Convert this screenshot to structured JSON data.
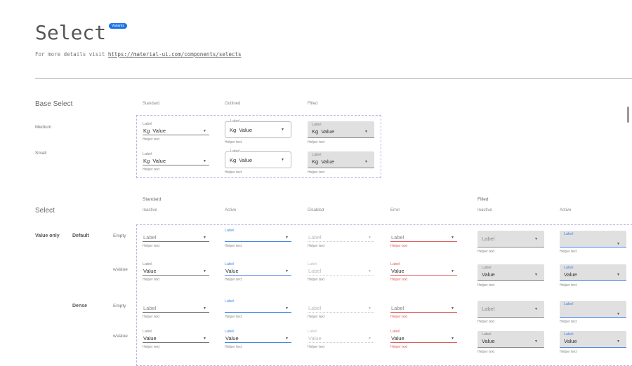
{
  "header": {
    "title": "Select",
    "badge": "Variants",
    "subtitle_prefix": "For more details visit ",
    "link": "https://material-ui.com/components/selects"
  },
  "base": {
    "title": "Base Select",
    "columns": [
      "Standard",
      "Outlined",
      "Filled"
    ],
    "rows": [
      "Medium",
      "Small"
    ],
    "field": {
      "label": "Label",
      "adornment": "Kg",
      "value": "Value",
      "helper": "Helper text"
    }
  },
  "select": {
    "title": "Select",
    "group_standard": "Standard",
    "group_filled": "Filled",
    "columns": [
      "Inactive",
      "Active",
      "Disabled",
      "Error",
      "Inactive",
      "Active"
    ],
    "section": "Value only",
    "sizes": [
      "Default",
      "Dense"
    ],
    "rows": [
      "Empty",
      "wValue",
      "Empty",
      "wValue"
    ],
    "label": "Label",
    "value": "Value",
    "helper": "Helper text"
  },
  "colors": {
    "accent": "#4a86e8",
    "error": "#e06060",
    "badge": "#1a73e8",
    "dashed": "#b9b4e8"
  },
  "icons": {
    "dropdown": "arrow-drop-down-icon"
  }
}
